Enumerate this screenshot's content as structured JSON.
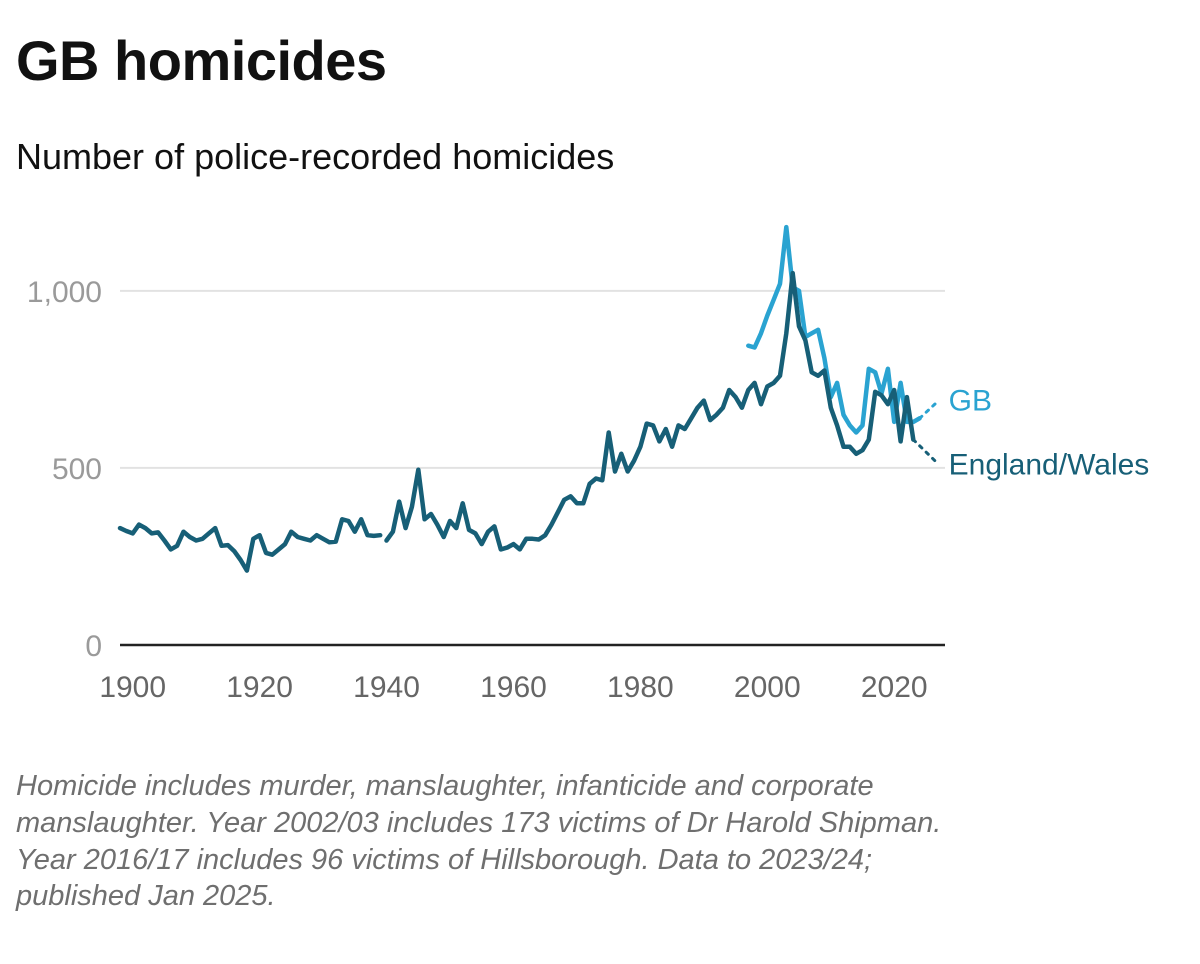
{
  "title": "GB homicides",
  "subtitle": "Number of police-recorded homicides",
  "note_lines": [
    "Homicide includes murder, manslaughter, infanticide and corporate",
    "manslaughter. Year 2002/03 includes 173 victims of Dr Harold Shipman.",
    "Year 2016/17 includes 96 victims of Hillsborough. Data to 2023/24;",
    "published Jan 2025."
  ],
  "colors": {
    "gb": "#2aa3d1",
    "ew": "#175f77",
    "grid": "#e2e2e2",
    "axis": "#222222",
    "tick": "#9a9a9a"
  },
  "chart_data": {
    "type": "line",
    "title": "GB homicides",
    "subtitle": "Number of police-recorded homicides",
    "xlim": [
      1898,
      2028
    ],
    "ylim": [
      0,
      1200
    ],
    "xticks": [
      "1900",
      "1920",
      "1940",
      "1960",
      "1980",
      "2000",
      "2020"
    ],
    "yticks": [
      "0",
      "500",
      "1,000"
    ],
    "grid": true,
    "series": [
      {
        "name": "England/Wales",
        "segments": [
          {
            "x": [
              1898,
              1899,
              1900,
              1901,
              1902,
              1903,
              1904,
              1905,
              1906,
              1907,
              1908,
              1909,
              1910,
              1911,
              1912,
              1913,
              1914,
              1915,
              1916,
              1917,
              1918,
              1919,
              1920,
              1921,
              1922,
              1923,
              1924,
              1925,
              1926,
              1927,
              1928,
              1929,
              1930,
              1931,
              1932,
              1933,
              1934,
              1935,
              1936,
              1937,
              1938,
              1939
            ],
            "y": [
              330,
              322,
              315,
              340,
              330,
              315,
              318,
              295,
              270,
              280,
              320,
              305,
              295,
              300,
              315,
              330,
              280,
              282,
              265,
              240,
              210,
              300,
              310,
              260,
              255,
              270,
              285,
              320,
              305,
              300,
              295,
              310,
              300,
              290,
              292,
              355,
              350,
              320,
              355,
              310,
              308,
              310
            ]
          },
          {
            "x": [
              1940,
              1941,
              1942,
              1943,
              1944,
              1945,
              1946,
              1947,
              1948,
              1949,
              1950,
              1951,
              1952,
              1953,
              1954,
              1955,
              1956,
              1957,
              1958,
              1959,
              1960,
              1961,
              1962,
              1963,
              1964,
              1965,
              1966,
              1967,
              1968,
              1969,
              1970,
              1971,
              1972,
              1973,
              1974,
              1975,
              1976,
              1977,
              1978,
              1979,
              1980,
              1981,
              1982,
              1983,
              1984,
              1985,
              1986,
              1987,
              1988,
              1989,
              1990,
              1991,
              1992,
              1993,
              1994,
              1995,
              1996,
              1997,
              1998,
              1999,
              2000,
              2001,
              2002,
              2003,
              2004,
              2005,
              2006,
              2007,
              2008,
              2009,
              2010,
              2011,
              2012,
              2013,
              2014,
              2015,
              2016,
              2017,
              2018,
              2019,
              2020,
              2021,
              2022,
              2023
            ],
            "y": [
              295,
              320,
              405,
              330,
              390,
              495,
              355,
              370,
              340,
              305,
              350,
              330,
              400,
              325,
              315,
              285,
              320,
              335,
              270,
              275,
              285,
              270,
              300,
              300,
              298,
              310,
              340,
              375,
              410,
              420,
              400,
              400,
              455,
              470,
              465,
              600,
              490,
              540,
              490,
              520,
              560,
              625,
              620,
              575,
              610,
              560,
              620,
              610,
              640,
              670,
              690,
              635,
              650,
              670,
              720,
              700,
              670,
              720,
              740,
              680,
              730,
              740,
              760,
              880,
              1050,
              900,
              860,
              770,
              760,
              775,
              670,
              620,
              560,
              560,
              540,
              550,
              580,
              715,
              705,
              680,
              720,
              575,
              700,
              580
            ]
          }
        ]
      },
      {
        "name": "GB",
        "segments": [
          {
            "x": [
              1997,
              1998,
              1999,
              2000,
              2001,
              2002,
              2003,
              2004,
              2005,
              2006,
              2007,
              2008,
              2009,
              2010,
              2011,
              2012,
              2013,
              2014,
              2015,
              2016,
              2017,
              2018,
              2019,
              2020,
              2021,
              2022,
              2023,
              2024
            ],
            "y": [
              845,
              840,
              880,
              930,
              975,
              1020,
              1180,
              1010,
              1000,
              870,
              880,
              890,
              810,
              700,
              740,
              650,
              620,
              600,
              620,
              780,
              770,
              710,
              780,
              630,
              740,
              630,
              630,
              640
            ]
          }
        ]
      }
    ],
    "projections": [
      {
        "series": "GB",
        "x": [
          2024,
          2027
        ],
        "y": [
          640,
          690
        ]
      },
      {
        "series": "England/Wales",
        "x": [
          2023,
          2027
        ],
        "y": [
          580,
          510
        ]
      }
    ],
    "line_labels": [
      {
        "series": "GB",
        "text": "GB"
      },
      {
        "series": "England/Wales",
        "text": "England/Wales"
      }
    ]
  }
}
